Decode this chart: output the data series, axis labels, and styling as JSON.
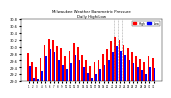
{
  "title": "Milwaukee Weather Barometric Pressure",
  "subtitle": "Daily High/Low",
  "bar_high_color": "#ff0000",
  "bar_low_color": "#0000ff",
  "background_color": "#ffffff",
  "ylim": [
    29.0,
    30.8
  ],
  "yticks": [
    29.0,
    29.2,
    29.4,
    29.6,
    29.8,
    30.0,
    30.2,
    30.4,
    30.6,
    30.8
  ],
  "days": [
    1,
    2,
    3,
    4,
    5,
    6,
    7,
    8,
    9,
    10,
    11,
    12,
    13,
    14,
    15,
    16,
    17,
    18,
    19,
    20,
    21,
    22,
    23,
    24,
    25,
    26,
    27,
    28,
    29,
    30,
    31
  ],
  "highs": [
    29.82,
    29.55,
    29.42,
    29.68,
    30.05,
    30.22,
    30.18,
    30.02,
    29.95,
    29.72,
    29.88,
    30.1,
    29.98,
    29.75,
    29.6,
    29.45,
    29.55,
    29.62,
    29.78,
    29.92,
    30.15,
    30.28,
    30.18,
    30.05,
    29.95,
    29.85,
    29.72,
    29.65,
    29.55,
    29.72,
    29.68
  ],
  "lows": [
    29.45,
    29.1,
    29.05,
    29.3,
    29.72,
    29.92,
    29.85,
    29.62,
    29.48,
    29.35,
    29.52,
    29.75,
    29.62,
    29.42,
    29.25,
    29.1,
    29.22,
    29.35,
    29.48,
    29.62,
    29.85,
    30.02,
    29.88,
    29.75,
    29.62,
    29.52,
    29.42,
    29.32,
    29.22,
    29.42,
    29.38
  ],
  "vline_positions": [
    20.5,
    21.5,
    22.5
  ],
  "legend_high": "High",
  "legend_low": "Low"
}
